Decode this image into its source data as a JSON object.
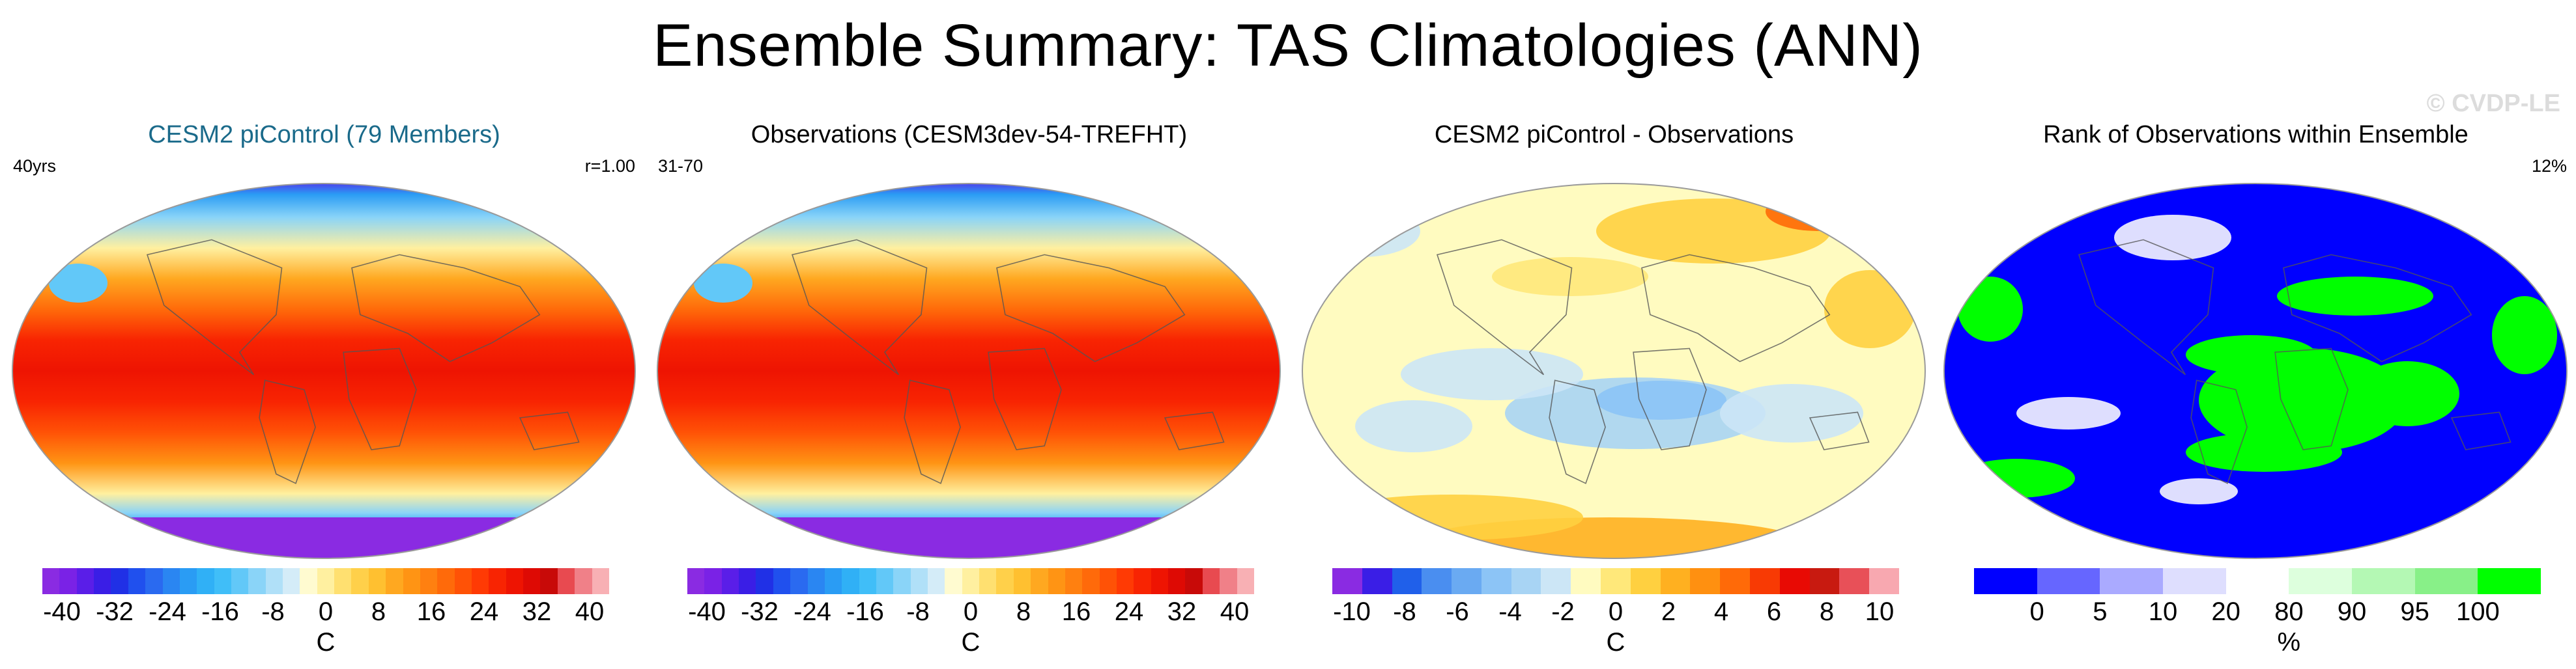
{
  "title": "Ensemble Summary: TAS Climatologies (ANN)",
  "watermark": "© CVDP-LE",
  "panels": [
    {
      "title": "CESM2 piControl (79 Members)",
      "left_label": "40yrs",
      "right_label": "r=1.00",
      "field": "temp",
      "colorbar": {
        "unit": "C",
        "ticks": [
          "-40",
          "-32",
          "-24",
          "-16",
          "-8",
          "0",
          "8",
          "16",
          "24",
          "32",
          "40"
        ],
        "colors": [
          "#8a2be2",
          "#7a22e6",
          "#5a1ee8",
          "#3a1ee6",
          "#2030e6",
          "#2050ee",
          "#2a6af0",
          "#2a86f2",
          "#2a9cf4",
          "#30b0f6",
          "#40bef8",
          "#62c8f8",
          "#8ad4f8",
          "#b0e0f8",
          "#d4ecf8",
          "#fffbd0",
          "#fff0a0",
          "#ffe070",
          "#ffd04a",
          "#ffc030",
          "#ffa820",
          "#ff9414",
          "#ff8010",
          "#ff6a0a",
          "#ff5206",
          "#ff3a04",
          "#f82402",
          "#ee1402",
          "#de0a04",
          "#c80a08",
          "#e84a50",
          "#f08088",
          "#f8b0b4"
        ]
      }
    },
    {
      "title": "Observations (CESM3dev-54-TREFHT)",
      "left_label": "31-70",
      "right_label": "",
      "field": "temp",
      "colorbar": {
        "unit": "C",
        "ticks": [
          "-40",
          "-32",
          "-24",
          "-16",
          "-8",
          "0",
          "8",
          "16",
          "24",
          "32",
          "40"
        ],
        "colors": [
          "#8a2be2",
          "#7a22e6",
          "#5a1ee8",
          "#3a1ee6",
          "#2030e6",
          "#2050ee",
          "#2a6af0",
          "#2a86f2",
          "#2a9cf4",
          "#30b0f6",
          "#40bef8",
          "#62c8f8",
          "#8ad4f8",
          "#b0e0f8",
          "#d4ecf8",
          "#fffbd0",
          "#fff0a0",
          "#ffe070",
          "#ffd04a",
          "#ffc030",
          "#ffa820",
          "#ff9414",
          "#ff8010",
          "#ff6a0a",
          "#ff5206",
          "#ff3a04",
          "#f82402",
          "#ee1402",
          "#de0a04",
          "#c80a08",
          "#e84a50",
          "#f08088",
          "#f8b0b4"
        ]
      }
    },
    {
      "title": "CESM2 piControl - Observations",
      "left_label": "",
      "right_label": "",
      "field": "diff",
      "colorbar": {
        "unit": "C",
        "ticks": [
          "-10",
          "-8",
          "-6",
          "-4",
          "-2",
          "0",
          "2",
          "4",
          "6",
          "8",
          "10"
        ],
        "colors": [
          "#8a2be2",
          "#3a1ee6",
          "#2060ea",
          "#4a8ef0",
          "#6aaaf2",
          "#8cc4f6",
          "#a8d4f4",
          "#cce6f6",
          "#fffbc0",
          "#ffe87a",
          "#ffd040",
          "#ffb020",
          "#ff9010",
          "#ff6a08",
          "#f83a04",
          "#e80a04",
          "#c81a10",
          "#e85058",
          "#f8a8b0"
        ]
      }
    },
    {
      "title": "Rank of Observations within Ensemble",
      "left_label": "",
      "right_label": "12%",
      "field": "rank",
      "colorbar": {
        "unit": "%",
        "ticks": [
          "0",
          "5",
          "10",
          "20",
          "80",
          "90",
          "95",
          "100"
        ],
        "colors": [
          "#0000ff",
          "#6666ff",
          "#aaaaff",
          "#dedefe",
          "#ffffff",
          "#ddffdd",
          "#b4f8b4",
          "#88f088",
          "#00ff00"
        ]
      }
    }
  ]
}
